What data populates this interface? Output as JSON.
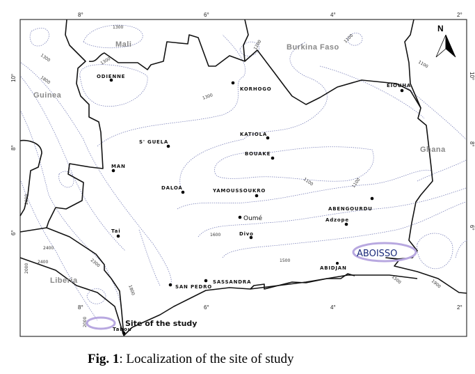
{
  "map": {
    "longitude_ticks": [
      "8°",
      "6°",
      "4°",
      "2°"
    ],
    "latitude_ticks": [
      "10°",
      "8°",
      "6°"
    ],
    "countries": [
      {
        "name": "Mali"
      },
      {
        "name": "Burkina Faso"
      },
      {
        "name": "Guinea"
      },
      {
        "name": "Ghana"
      },
      {
        "name": "Liberia"
      }
    ],
    "cities": [
      {
        "name": "ODIENNE"
      },
      {
        "name": "KORHOGO"
      },
      {
        "name": "EIOUHA"
      },
      {
        "name": "KATIOLA"
      },
      {
        "name": "BOUAKE"
      },
      {
        "name": "S' GUELA"
      },
      {
        "name": "MAN"
      },
      {
        "name": "DALOA"
      },
      {
        "name": "YAMOUSSOUKRO"
      },
      {
        "name": "ABENGOURDU"
      },
      {
        "name": "Oumé"
      },
      {
        "name": "Adzope"
      },
      {
        "name": "Divo"
      },
      {
        "name": "Tai"
      },
      {
        "name": "ABIDJAN"
      },
      {
        "name": "SASSANDRA"
      },
      {
        "name": "SAN PEDRO"
      },
      {
        "name": "Tabou"
      }
    ],
    "site_label": "ABOISSO",
    "north_label": "N",
    "contour_labels": [
      "1300",
      "1300",
      "1200",
      "1100",
      "1300",
      "1800",
      "1300",
      "1100",
      "1100",
      "1100",
      "1600",
      "1500",
      "1500",
      "1900",
      "2000",
      "2400",
      "2400",
      "2000",
      "2300",
      "1800",
      "2000"
    ],
    "site_color": "#b8a8e0",
    "contour_color": "#7a80b8"
  },
  "legend": {
    "label": "Site of the study"
  },
  "caption": {
    "prefix": "Fig. 1",
    "text": ": Localization of the site of study"
  }
}
